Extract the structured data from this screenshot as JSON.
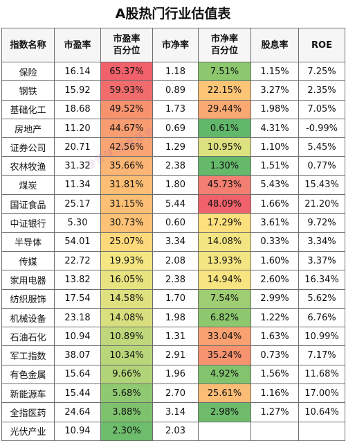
{
  "title": "A股热门行业估值表",
  "headers": {
    "name": "指数名称",
    "pe": "市盈率",
    "pe_pct_line1": "市盈率",
    "pe_pct_line2": "百分位",
    "pb": "市净率",
    "pb_pct_line1": "市净率",
    "pb_pct_line2": "百分位",
    "dividend": "股息率",
    "roe": "ROE"
  },
  "rows": [
    {
      "name": "保险",
      "pe": "16.14",
      "pe_pct": "65.37%",
      "pb": "1.18",
      "pb_pct": "7.51%",
      "dividend": "1.15%",
      "roe": "7.25%",
      "pe_color": "#f0616b",
      "pb_color": "#8dc86f"
    },
    {
      "name": "钢铁",
      "pe": "15.92",
      "pe_pct": "59.93%",
      "pb": "0.89",
      "pb_pct": "22.15%",
      "dividend": "3.27%",
      "roe": "2.35%",
      "pe_color": "#f16d6d",
      "pb_color": "#fdc576"
    },
    {
      "name": "基础化工",
      "pe": "18.68",
      "pe_pct": "49.52%",
      "pb": "1.73",
      "pb_pct": "29.44%",
      "dividend": "1.98%",
      "roe": "7.05%",
      "pe_color": "#f7926f",
      "pb_color": "#fba972"
    },
    {
      "name": "房地产",
      "pe": "11.20",
      "pe_pct": "44.67%",
      "pb": "0.69",
      "pb_pct": "0.61%",
      "dividend": "4.31%",
      "roe": "-0.99%",
      "pe_color": "#f89d71",
      "pb_color": "#62b86a"
    },
    {
      "name": "证券公司",
      "pe": "20.71",
      "pe_pct": "42.56%",
      "pb": "1.29",
      "pb_pct": "10.95%",
      "dividend": "1.10%",
      "roe": "5.45%",
      "pe_color": "#f9a472",
      "pb_color": "#dce27f"
    },
    {
      "name": "农林牧渔",
      "pe": "31.32",
      "pe_pct": "35.66%",
      "pb": "2.38",
      "pb_pct": "1.30%",
      "dividend": "1.51%",
      "roe": "0.77%",
      "pe_color": "#fbb574",
      "pb_color": "#66b96b"
    },
    {
      "name": "煤炭",
      "pe": "11.34",
      "pe_pct": "31.81%",
      "pb": "1.80",
      "pb_pct": "45.73%",
      "dividend": "5.43%",
      "roe": "15.43%",
      "pe_color": "#fcbe75",
      "pb_color": "#f37e72"
    },
    {
      "name": "国证食品",
      "pe": "25.17",
      "pe_pct": "31.15%",
      "pb": "5.44",
      "pb_pct": "48.09%",
      "dividend": "1.66%",
      "roe": "21.20%",
      "pe_color": "#fcbf75",
      "pb_color": "#f0626b"
    },
    {
      "name": "中证银行",
      "pe": "5.30",
      "pe_pct": "30.73%",
      "pb": "0.60",
      "pb_pct": "17.29%",
      "dividend": "3.61%",
      "roe": "9.72%",
      "pe_color": "#fdc276",
      "pb_color": "#fde07e"
    },
    {
      "name": "半导体",
      "pe": "54.01",
      "pe_pct": "25.07%",
      "pb": "3.34",
      "pb_pct": "14.08%",
      "dividend": "0.33%",
      "roe": "3.34%",
      "pe_color": "#fed97c",
      "pb_color": "#f3e682"
    },
    {
      "name": "传媒",
      "pe": "22.72",
      "pe_pct": "19.93%",
      "pb": "2.08",
      "pb_pct": "13.93%",
      "dividend": "1.60%",
      "roe": "3.37%",
      "pe_color": "#f4e783",
      "pb_color": "#f3e682"
    },
    {
      "name": "家用电器",
      "pe": "13.82",
      "pe_pct": "16.05%",
      "pb": "2.38",
      "pb_pct": "14.94%",
      "dividend": "2.60%",
      "roe": "16.34%",
      "pe_color": "#e8e381",
      "pb_color": "#f8e480"
    },
    {
      "name": "纺织服饰",
      "pe": "17.54",
      "pe_pct": "14.58%",
      "pb": "1.70",
      "pb_pct": "7.54%",
      "dividend": "2.99%",
      "roe": "5.62%",
      "pe_color": "#dfe180",
      "pb_color": "#9fcd72"
    },
    {
      "name": "机械设备",
      "pe": "23.18",
      "pe_pct": "14.08%",
      "pb": "1.98",
      "pb_pct": "6.82%",
      "dividend": "1.22%",
      "roe": "6.76%",
      "pe_color": "#d9df7f",
      "pb_color": "#8dc86f"
    },
    {
      "name": "石油石化",
      "pe": "10.94",
      "pe_pct": "10.89%",
      "pb": "1.31",
      "pb_pct": "33.04%",
      "dividend": "1.63%",
      "roe": "10.99%",
      "pe_color": "#bfd87b",
      "pb_color": "#f9a171"
    },
    {
      "name": "军工指数",
      "pe": "38.07",
      "pe_pct": "10.34%",
      "pb": "2.91",
      "pb_pct": "35.24%",
      "dividend": "0.73%",
      "roe": "7.17%",
      "pe_color": "#b9d67a",
      "pb_color": "#f7936f"
    },
    {
      "name": "有色金属",
      "pe": "15.64",
      "pe_pct": "9.66%",
      "pb": "1.96",
      "pb_pct": "4.92%",
      "dividend": "1.56%",
      "roe": "11.68%",
      "pe_color": "#b1d479",
      "pb_color": "#82c46d"
    },
    {
      "name": "新能源车",
      "pe": "15.44",
      "pe_pct": "5.68%",
      "pb": "2.70",
      "pb_pct": "25.61%",
      "dividend": "1.16%",
      "roe": "17.00%",
      "pe_color": "#8fc971",
      "pb_color": "#fbbd75"
    },
    {
      "name": "全指医药",
      "pe": "24.64",
      "pe_pct": "3.88%",
      "pb": "3.14",
      "pb_pct": "2.98%",
      "dividend": "1.27%",
      "roe": "10.64%",
      "pe_color": "#7ec26e",
      "pb_color": "#6dbb6b"
    },
    {
      "name": "光伏产业",
      "pe": "10.94",
      "pe_pct": "2.30%",
      "pb": "2.03",
      "pb_pct": "",
      "dividend": "",
      "roe": "",
      "pe_color": "#6ebd6c",
      "pb_color": "#ffffff"
    }
  ],
  "watermark": "@雪球 蛋卷基金"
}
